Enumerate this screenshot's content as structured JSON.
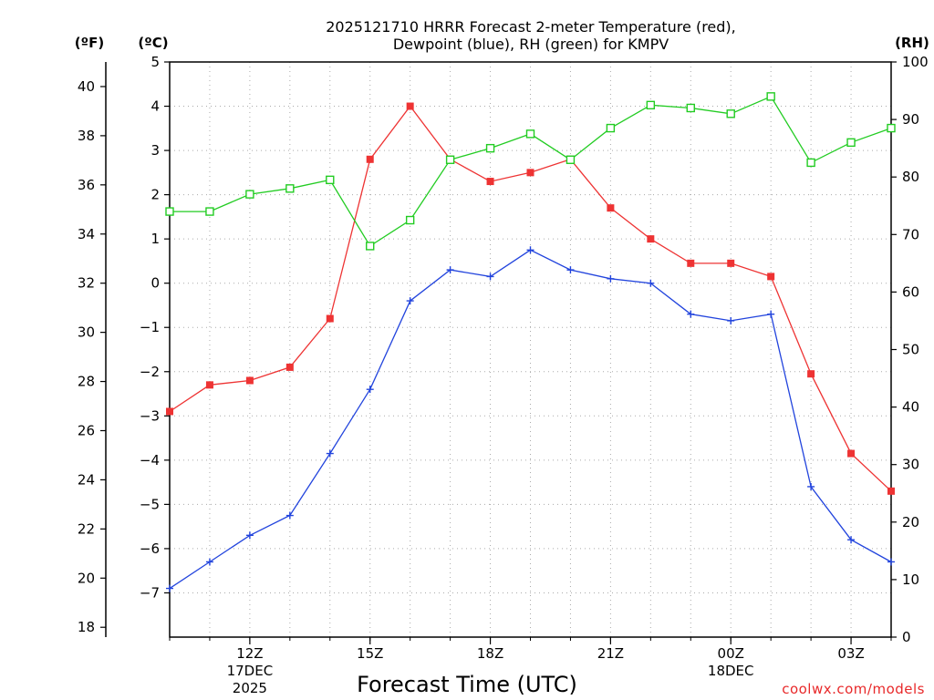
{
  "chart_data": {
    "type": "line",
    "title_line1": "2025121710 HRRR Forecast 2-meter Temperature (red),",
    "title_line2": "Dewpoint (blue), RH (green) for KMPV",
    "xlabel": "Forecast Time (UTC)",
    "credit": "coolwx.com/models",
    "left_outer_unit": "(ºF)",
    "left_inner_unit": "(ºC)",
    "right_unit": "(RH)",
    "x_hours": [
      10,
      11,
      12,
      13,
      14,
      15,
      16,
      17,
      18,
      19,
      20,
      21,
      22,
      23,
      24,
      25,
      26,
      27,
      28
    ],
    "x_ticks": [
      {
        "hour": 12,
        "lines": [
          "12Z",
          "17DEC",
          "2025"
        ]
      },
      {
        "hour": 15,
        "lines": [
          "15Z"
        ]
      },
      {
        "hour": 18,
        "lines": [
          "18Z"
        ]
      },
      {
        "hour": 21,
        "lines": [
          "21Z"
        ]
      },
      {
        "hour": 24,
        "lines": [
          "00Z",
          "18DEC"
        ]
      },
      {
        "hour": 27,
        "lines": [
          "03Z"
        ]
      }
    ],
    "xlim": [
      10,
      28
    ],
    "celsius_axis": {
      "ylim": [
        -8,
        5
      ],
      "ticks": [
        "5",
        "4",
        "3",
        "2",
        "1",
        "0",
        "−1",
        "−2",
        "−3",
        "−4",
        "−5",
        "−6",
        "−7"
      ],
      "tick_values": [
        5,
        4,
        3,
        2,
        1,
        0,
        -1,
        -2,
        -3,
        -4,
        -5,
        -6,
        -7
      ]
    },
    "fahrenheit_axis": {
      "ticks": [
        "40",
        "38",
        "36",
        "34",
        "32",
        "30",
        "28",
        "26",
        "24",
        "22",
        "20",
        "18"
      ],
      "tick_values": [
        40,
        38,
        36,
        34,
        32,
        30,
        28,
        26,
        24,
        22,
        20,
        18
      ]
    },
    "rh_axis": {
      "ylim": [
        0,
        100
      ],
      "ticks": [
        "100",
        "90",
        "80",
        "70",
        "60",
        "50",
        "40",
        "30",
        "20",
        "10",
        "0"
      ],
      "tick_values": [
        100,
        90,
        80,
        70,
        60,
        50,
        40,
        30,
        20,
        10,
        0
      ]
    },
    "series": [
      {
        "name": "Temperature",
        "units": "C",
        "color": "#ee3333",
        "values": [
          -2.9,
          -2.3,
          -2.2,
          -1.9,
          -0.8,
          2.8,
          4.0,
          2.8,
          2.3,
          2.5,
          2.8,
          1.7,
          1.0,
          0.45,
          0.45,
          0.15,
          -2.05,
          -3.85,
          -4.7
        ]
      },
      {
        "name": "Dewpoint",
        "units": "C",
        "color": "#2244dd",
        "values": [
          -6.9,
          -6.3,
          -5.7,
          -5.25,
          -3.85,
          -2.4,
          -0.4,
          0.3,
          0.15,
          0.75,
          0.3,
          0.1,
          0.0,
          -0.7,
          -0.85,
          -0.7,
          -4.6,
          -5.8,
          -6.3
        ]
      },
      {
        "name": "RH",
        "units": "%",
        "color": "#22cc22",
        "values": [
          74,
          74,
          77,
          78,
          79.5,
          68,
          72.5,
          83,
          85,
          87.5,
          83,
          88.5,
          92.5,
          92,
          91,
          94,
          82.5,
          86,
          88.5
        ]
      }
    ]
  }
}
